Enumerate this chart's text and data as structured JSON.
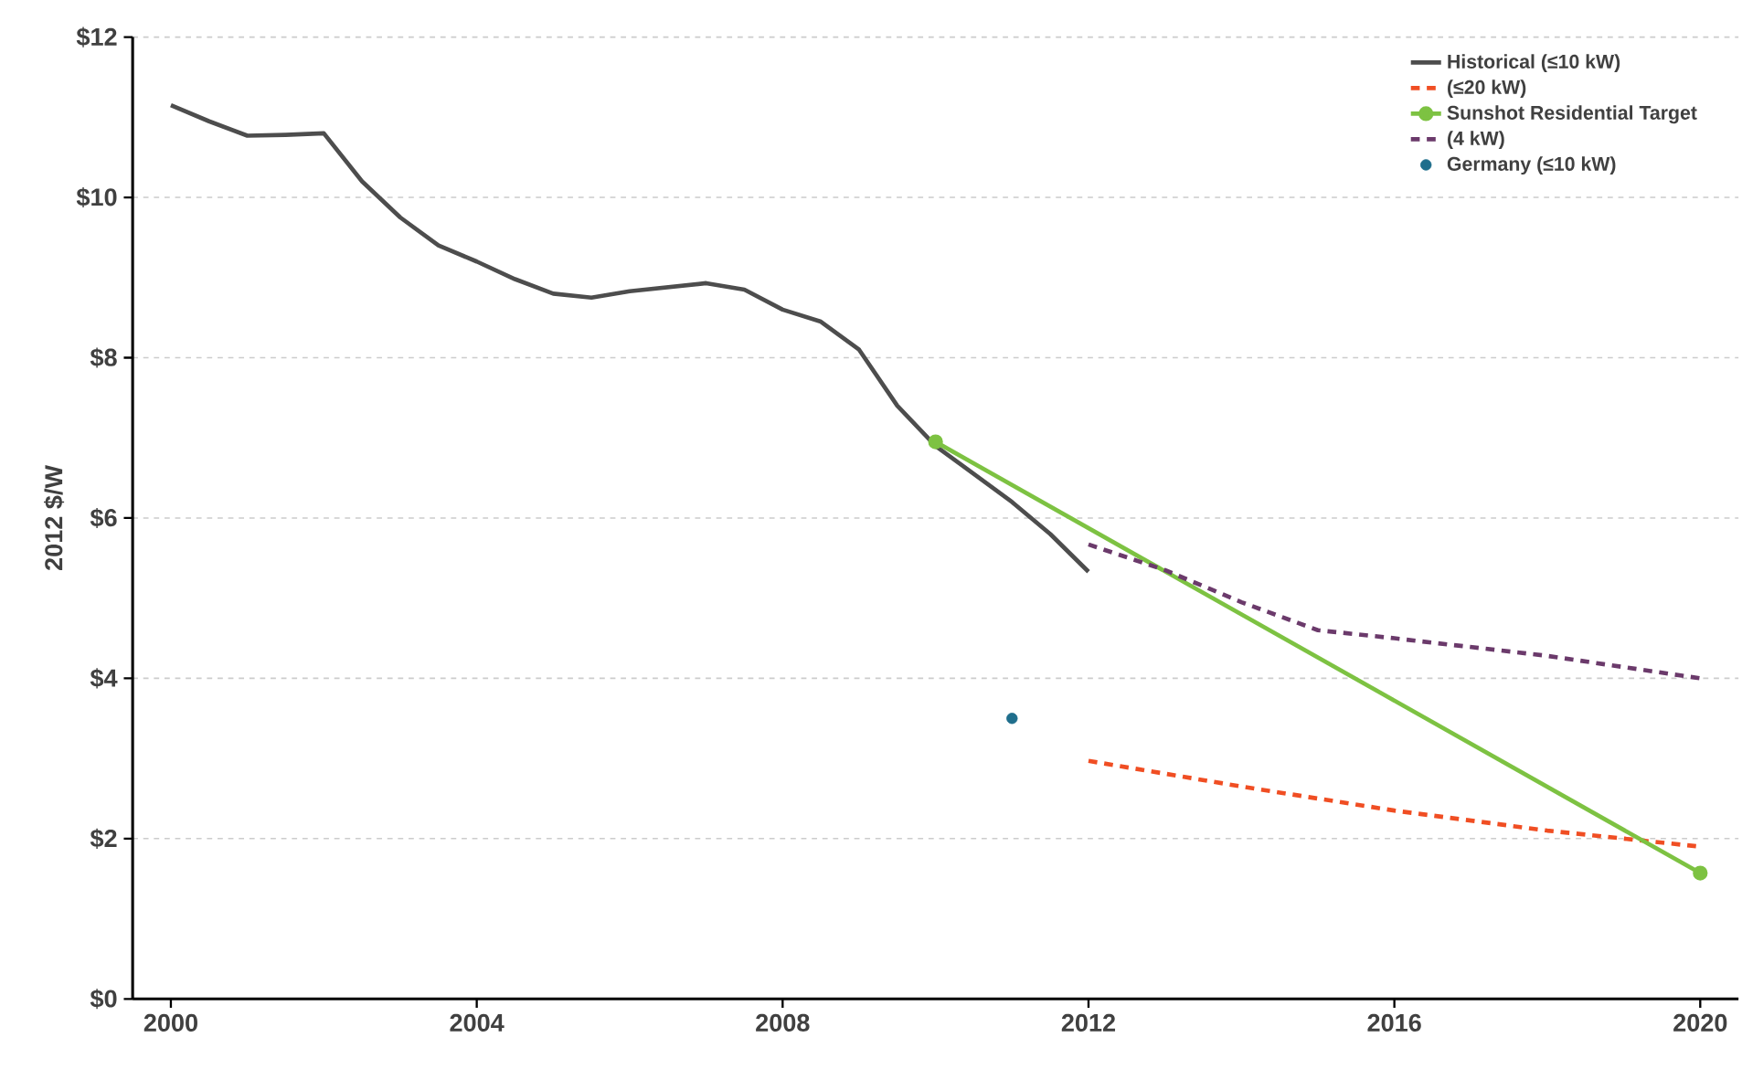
{
  "chart_data": {
    "type": "line",
    "ylabel": "2012 $/W",
    "xlim": [
      1999.5,
      2020.5
    ],
    "xticks": [
      2000,
      2004,
      2008,
      2012,
      2016,
      2020
    ],
    "ylim": [
      0,
      12
    ],
    "yticks": [
      {
        "value": 0,
        "label": "$0"
      },
      {
        "value": 2,
        "label": "$2"
      },
      {
        "value": 4,
        "label": "$4"
      },
      {
        "value": 6,
        "label": "$6"
      },
      {
        "value": 8,
        "label": "$8"
      },
      {
        "value": 10,
        "label": "$10"
      },
      {
        "value": 12,
        "label": "$12"
      }
    ],
    "grid": "y",
    "legend": "top right",
    "series": [
      {
        "name": "Historical (≤10 kW)",
        "color": "#4d4d4d",
        "line_style": "solid",
        "marker": "none",
        "x": [
          2000,
          2000.5,
          2001,
          2001.5,
          2002,
          2002.5,
          2003,
          2003.5,
          2004,
          2004.5,
          2005,
          2005.5,
          2006,
          2006.5,
          2007,
          2007.5,
          2008,
          2008.5,
          2009,
          2009.5,
          2010,
          2010.5,
          2011,
          2011.5,
          2012
        ],
        "values": [
          11.15,
          10.95,
          10.77,
          10.78,
          10.8,
          10.2,
          9.75,
          9.4,
          9.2,
          8.98,
          8.8,
          8.75,
          8.83,
          8.88,
          8.93,
          8.85,
          8.6,
          8.45,
          8.1,
          7.4,
          6.9,
          6.55,
          6.2,
          5.8,
          5.33
        ]
      },
      {
        "name": "(≤20 kW)",
        "color": "#f04e23",
        "line_style": "dashed",
        "marker": "none",
        "x": [
          2012,
          2014,
          2016,
          2018,
          2020
        ],
        "values": [
          2.97,
          2.65,
          2.35,
          2.1,
          1.9
        ]
      },
      {
        "name": "Sunshot Residential Target",
        "color": "#7dc242",
        "line_style": "solid",
        "marker": "circle",
        "x": [
          2010,
          2020
        ],
        "values": [
          6.95,
          1.57
        ]
      },
      {
        "name": "(4 kW)",
        "color": "#6b3a6b",
        "line_style": "dashed",
        "marker": "none",
        "x": [
          2012,
          2013,
          2014,
          2015,
          2016,
          2018,
          2020
        ],
        "values": [
          5.67,
          5.35,
          4.95,
          4.6,
          4.5,
          4.28,
          4.0
        ]
      },
      {
        "name": "Germany (≤10 kW)",
        "type": "scatter",
        "color": "#1f6e8c",
        "marker": "circle",
        "x": [
          2011
        ],
        "values": [
          3.5
        ]
      }
    ]
  }
}
